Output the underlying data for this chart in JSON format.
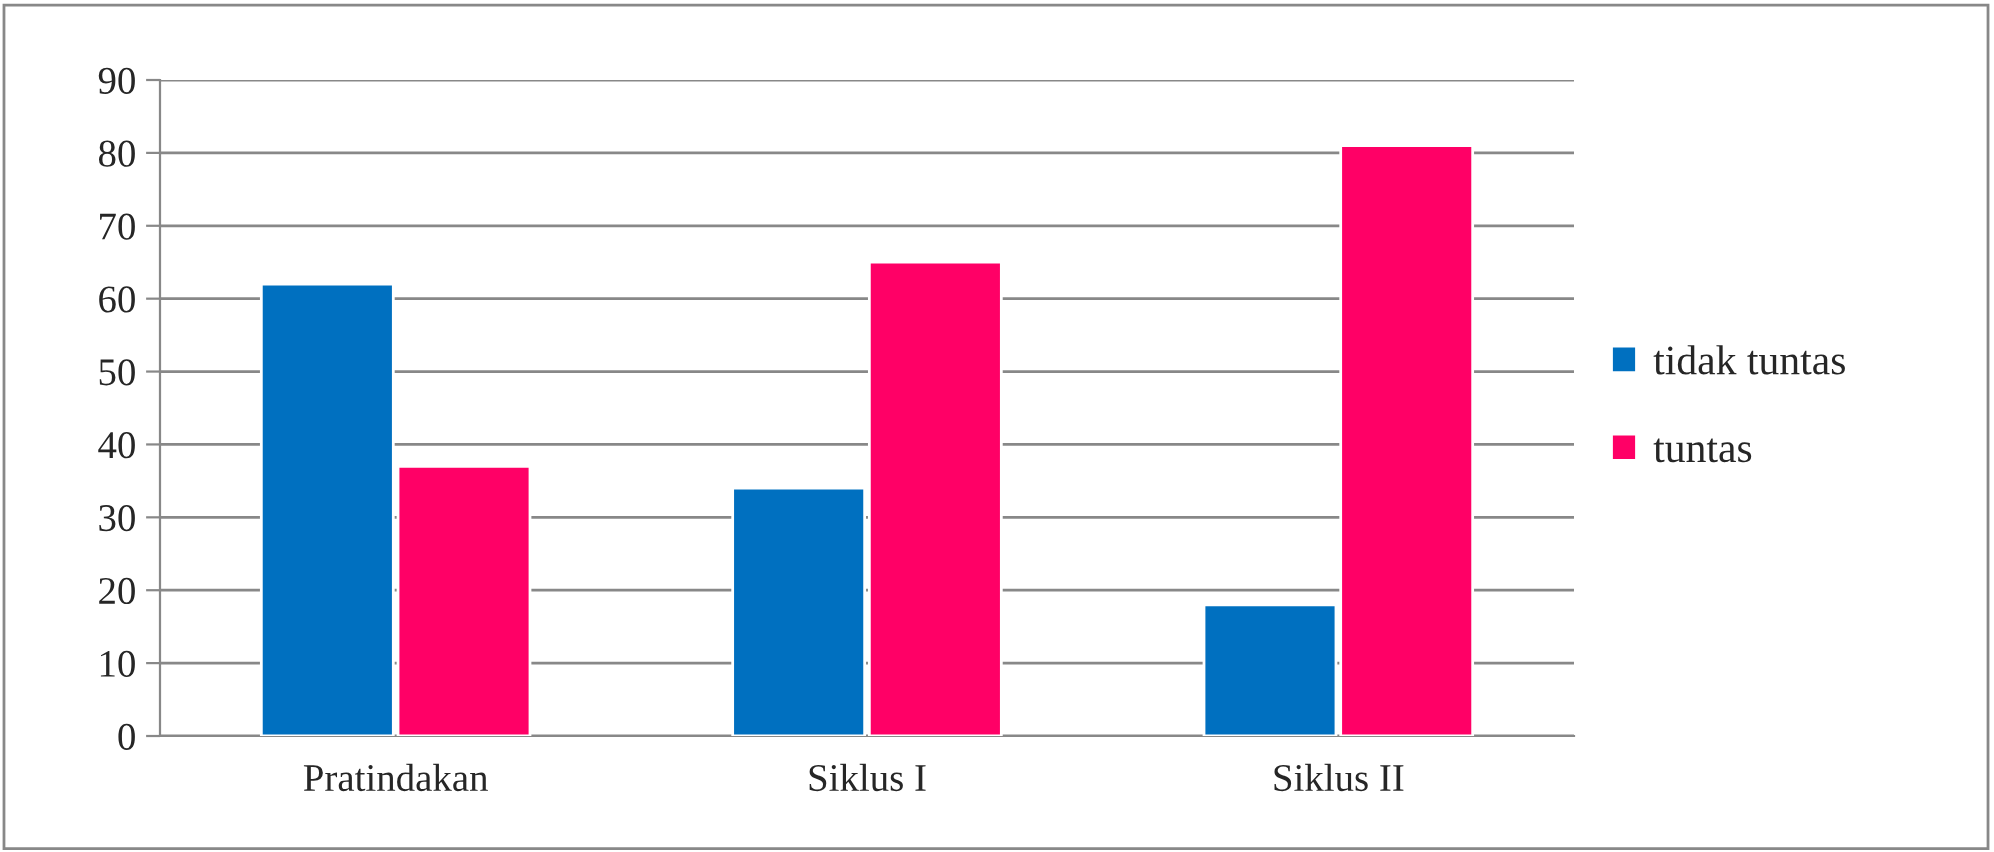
{
  "chart_data": {
    "type": "bar",
    "categories": [
      "Pratindakan",
      "Siklus I",
      "Siklus II"
    ],
    "series": [
      {
        "name": "tidak tuntas",
        "color": "#0070c0",
        "values": [
          62,
          34,
          18
        ]
      },
      {
        "name": "tuntas",
        "color": "#ff0066",
        "values": [
          37,
          65,
          81
        ]
      }
    ],
    "ylim": [
      0,
      90
    ],
    "yticks": [
      0,
      10,
      20,
      30,
      40,
      50,
      60,
      70,
      80,
      90
    ],
    "grid": "y",
    "legend": "right"
  }
}
